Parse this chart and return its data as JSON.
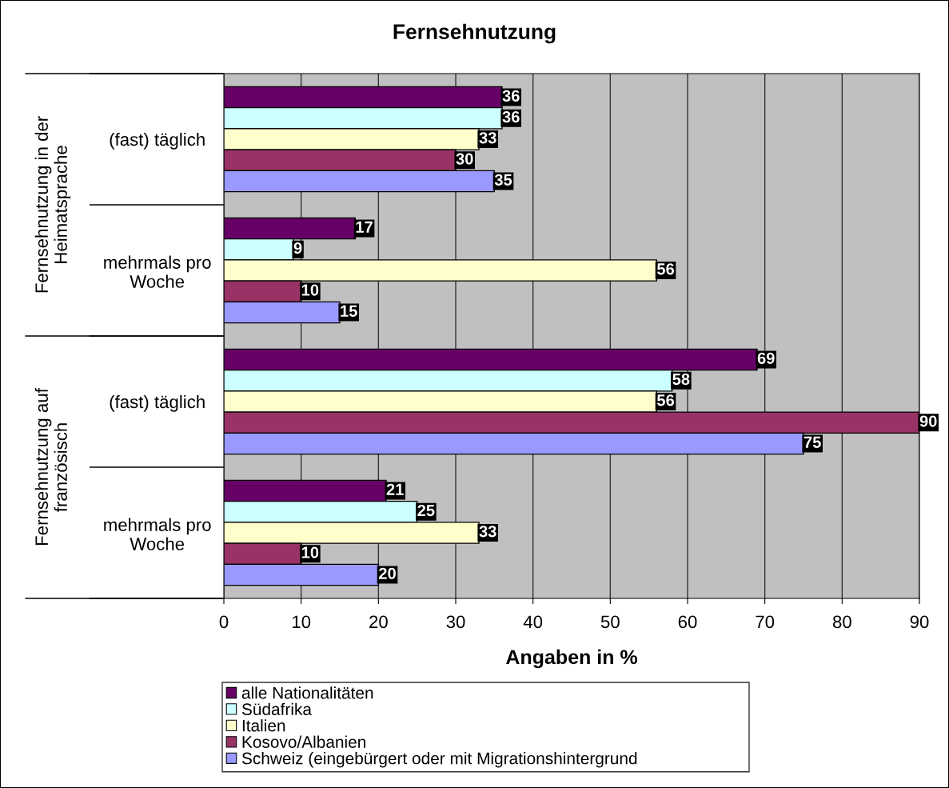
{
  "chart_data": {
    "type": "bar",
    "orientation": "horizontal",
    "title": "Fernsehnutzung",
    "xlabel": "Angaben in %",
    "categories": [
      "(fast) täglich",
      "mehrmals pro\nWoche",
      "(fast) täglich",
      "mehrmals pro\nWoche"
    ],
    "series": [
      {
        "name": "alle Nationalitäten",
        "color": "#660066",
        "values": [
          36,
          17,
          69,
          21
        ]
      },
      {
        "name": "Südafrika",
        "color": "#ccffff",
        "values": [
          36,
          9,
          58,
          25
        ]
      },
      {
        "name": "Italien",
        "color": "#ffffcc",
        "values": [
          33,
          56,
          56,
          33
        ]
      },
      {
        "name": "Kosovo/Albanien",
        "color": "#993366",
        "values": [
          30,
          10,
          90,
          10
        ]
      },
      {
        "name": "Schweiz (eingebürgert oder mit Migrationshintergrund",
        "color": "#9999ff",
        "values": [
          35,
          15,
          75,
          20
        ]
      }
    ],
    "xlim": [
      0,
      90
    ],
    "xticks": [
      0,
      10,
      20,
      30,
      40,
      50,
      60,
      70,
      80,
      90
    ],
    "grid": "x",
    "legend": "bottom",
    "data_labels": true,
    "annotations": [
      "Fernsehnutzung in der\nHeimatsprache",
      "Fernsehnutzung auf\nfranzösisch"
    ]
  }
}
